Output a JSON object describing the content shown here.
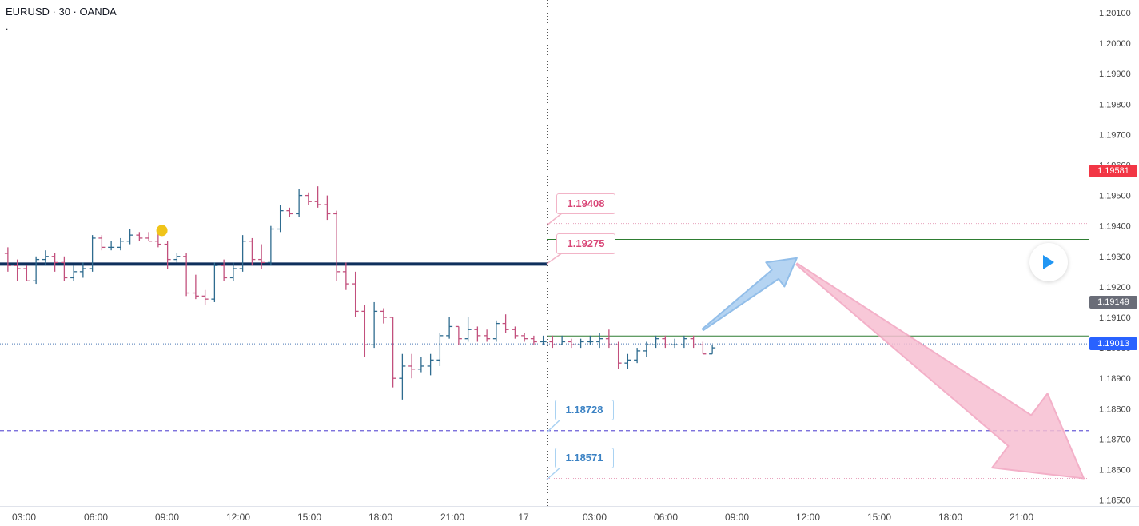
{
  "legend": {
    "symbol": "EURUSD",
    "interval": "30",
    "exchange": "OANDA",
    "separator": " · ",
    "second_line": "."
  },
  "colors": {
    "up": "#2e6b8f",
    "down": "#c2507d",
    "level_line": "#0e2f5c",
    "green_line": "#2e7d32",
    "dotted_blue": "#4a78b5",
    "dashed_purple": "#6b5fd8",
    "dotted_pink": "#e8a3bd",
    "crosshair": "#555555",
    "axis_text": "#444444",
    "grid_border": "#e0e3eb"
  },
  "price_axis": {
    "ticks": [
      "1.20100",
      "1.20000",
      "1.19900",
      "1.19800",
      "1.19700",
      "1.19600",
      "1.19500",
      "1.19400",
      "1.19300",
      "1.19200",
      "1.19100",
      "1.19000",
      "1.18900",
      "1.18800",
      "1.18700",
      "1.18600",
      "1.18500"
    ],
    "tags": [
      {
        "value": "1.19581",
        "price": 1.19581,
        "color": "#f23645"
      },
      {
        "value": "1.19149",
        "price": 1.19149,
        "color": "#6a6d78"
      },
      {
        "value": "1.19013",
        "price": 1.19013,
        "color": "#2962ff"
      }
    ]
  },
  "time_axis": {
    "labels": [
      "03:00",
      "06:00",
      "09:00",
      "12:00",
      "15:00",
      "18:00",
      "21:00",
      "17",
      "03:00",
      "06:00",
      "09:00",
      "12:00",
      "15:00",
      "18:00",
      "21:00"
    ]
  },
  "callouts": [
    {
      "text": "1.19408",
      "style": "red"
    },
    {
      "text": "1.19275",
      "style": "red"
    },
    {
      "text": "1.18728",
      "style": "blue"
    },
    {
      "text": "1.18571",
      "style": "blue"
    }
  ],
  "chart_data": {
    "type": "ohlc",
    "symbol": "EURUSD",
    "interval_minutes": 30,
    "price_range": [
      1.1848,
      1.2104
    ],
    "x_unit": "30-minute bar index (0 = first visible bar)",
    "x_range": [
      -0.5,
      90
    ],
    "bars": [
      {
        "i": 0,
        "o": 1.1931,
        "h": 1.1933,
        "l": 1.1925,
        "c": 1.1927
      },
      {
        "i": 1,
        "o": 1.1927,
        "h": 1.1929,
        "l": 1.1922,
        "c": 1.1926
      },
      {
        "i": 2,
        "o": 1.1926,
        "h": 1.1927,
        "l": 1.1922,
        "c": 1.1922
      },
      {
        "i": 3,
        "o": 1.1922,
        "h": 1.193,
        "l": 1.1921,
        "c": 1.1929
      },
      {
        "i": 4,
        "o": 1.1929,
        "h": 1.1932,
        "l": 1.1927,
        "c": 1.193
      },
      {
        "i": 5,
        "o": 1.193,
        "h": 1.1931,
        "l": 1.1925,
        "c": 1.1928
      },
      {
        "i": 6,
        "o": 1.1928,
        "h": 1.193,
        "l": 1.1922,
        "c": 1.1923
      },
      {
        "i": 7,
        "o": 1.1923,
        "h": 1.1927,
        "l": 1.1922,
        "c": 1.1925
      },
      {
        "i": 8,
        "o": 1.1925,
        "h": 1.1928,
        "l": 1.1923,
        "c": 1.1926
      },
      {
        "i": 9,
        "o": 1.1926,
        "h": 1.1937,
        "l": 1.1925,
        "c": 1.1936
      },
      {
        "i": 10,
        "o": 1.1936,
        "h": 1.1937,
        "l": 1.1932,
        "c": 1.1933
      },
      {
        "i": 11,
        "o": 1.1933,
        "h": 1.1935,
        "l": 1.1932,
        "c": 1.1933
      },
      {
        "i": 12,
        "o": 1.1933,
        "h": 1.1936,
        "l": 1.1932,
        "c": 1.1935
      },
      {
        "i": 13,
        "o": 1.1935,
        "h": 1.1939,
        "l": 1.1934,
        "c": 1.1937
      },
      {
        "i": 14,
        "o": 1.1937,
        "h": 1.1938,
        "l": 1.1935,
        "c": 1.1936
      },
      {
        "i": 15,
        "o": 1.1936,
        "h": 1.1938,
        "l": 1.1935,
        "c": 1.1935
      },
      {
        "i": 16,
        "o": 1.1935,
        "h": 1.1938,
        "l": 1.1933,
        "c": 1.1934
      },
      {
        "i": 17,
        "o": 1.1934,
        "h": 1.1935,
        "l": 1.1926,
        "c": 1.1929
      },
      {
        "i": 18,
        "o": 1.1929,
        "h": 1.1931,
        "l": 1.1928,
        "c": 1.193
      },
      {
        "i": 19,
        "o": 1.193,
        "h": 1.1931,
        "l": 1.1917,
        "c": 1.1918
      },
      {
        "i": 20,
        "o": 1.1918,
        "h": 1.1924,
        "l": 1.1916,
        "c": 1.1917
      },
      {
        "i": 21,
        "o": 1.1917,
        "h": 1.1919,
        "l": 1.1914,
        "c": 1.1916
      },
      {
        "i": 22,
        "o": 1.1916,
        "h": 1.1928,
        "l": 1.1915,
        "c": 1.1927
      },
      {
        "i": 23,
        "o": 1.1927,
        "h": 1.1929,
        "l": 1.1922,
        "c": 1.1923
      },
      {
        "i": 24,
        "o": 1.1923,
        "h": 1.1928,
        "l": 1.1922,
        "c": 1.1926
      },
      {
        "i": 25,
        "o": 1.1926,
        "h": 1.1937,
        "l": 1.1925,
        "c": 1.1935
      },
      {
        "i": 26,
        "o": 1.1935,
        "h": 1.1936,
        "l": 1.1927,
        "c": 1.1929
      },
      {
        "i": 27,
        "o": 1.1929,
        "h": 1.1934,
        "l": 1.1926,
        "c": 1.1928
      },
      {
        "i": 28,
        "o": 1.1928,
        "h": 1.194,
        "l": 1.1927,
        "c": 1.1939
      },
      {
        "i": 29,
        "o": 1.1939,
        "h": 1.1947,
        "l": 1.1938,
        "c": 1.1945
      },
      {
        "i": 30,
        "o": 1.1945,
        "h": 1.1946,
        "l": 1.1943,
        "c": 1.1944
      },
      {
        "i": 31,
        "o": 1.1944,
        "h": 1.1952,
        "l": 1.1943,
        "c": 1.195
      },
      {
        "i": 32,
        "o": 1.195,
        "h": 1.1951,
        "l": 1.1947,
        "c": 1.1948
      },
      {
        "i": 33,
        "o": 1.1948,
        "h": 1.1953,
        "l": 1.1946,
        "c": 1.1947
      },
      {
        "i": 34,
        "o": 1.1947,
        "h": 1.195,
        "l": 1.1942,
        "c": 1.1944
      },
      {
        "i": 35,
        "o": 1.1944,
        "h": 1.1945,
        "l": 1.1922,
        "c": 1.1925
      },
      {
        "i": 36,
        "o": 1.1925,
        "h": 1.1928,
        "l": 1.1919,
        "c": 1.1921
      },
      {
        "i": 37,
        "o": 1.1921,
        "h": 1.1925,
        "l": 1.191,
        "c": 1.1912
      },
      {
        "i": 38,
        "o": 1.1912,
        "h": 1.1914,
        "l": 1.1897,
        "c": 1.1901
      },
      {
        "i": 39,
        "o": 1.1901,
        "h": 1.1915,
        "l": 1.19,
        "c": 1.1912
      },
      {
        "i": 40,
        "o": 1.1912,
        "h": 1.1913,
        "l": 1.1908,
        "c": 1.191
      },
      {
        "i": 41,
        "o": 1.191,
        "h": 1.191,
        "l": 1.1887,
        "c": 1.189
      },
      {
        "i": 42,
        "o": 1.189,
        "h": 1.1898,
        "l": 1.1883,
        "c": 1.1894
      },
      {
        "i": 43,
        "o": 1.1894,
        "h": 1.1898,
        "l": 1.189,
        "c": 1.1893
      },
      {
        "i": 44,
        "o": 1.1893,
        "h": 1.1897,
        "l": 1.1892,
        "c": 1.1894
      },
      {
        "i": 45,
        "o": 1.1894,
        "h": 1.1898,
        "l": 1.1891,
        "c": 1.1896
      },
      {
        "i": 46,
        "o": 1.1896,
        "h": 1.1905,
        "l": 1.1894,
        "c": 1.1904
      },
      {
        "i": 47,
        "o": 1.1904,
        "h": 1.191,
        "l": 1.1903,
        "c": 1.1907
      },
      {
        "i": 48,
        "o": 1.1907,
        "h": 1.1907,
        "l": 1.1901,
        "c": 1.1903
      },
      {
        "i": 49,
        "o": 1.1903,
        "h": 1.191,
        "l": 1.1902,
        "c": 1.1906
      },
      {
        "i": 50,
        "o": 1.1906,
        "h": 1.1907,
        "l": 1.1902,
        "c": 1.1904
      },
      {
        "i": 51,
        "o": 1.1904,
        "h": 1.1906,
        "l": 1.1902,
        "c": 1.1903
      },
      {
        "i": 52,
        "o": 1.1903,
        "h": 1.1909,
        "l": 1.1902,
        "c": 1.1908
      },
      {
        "i": 53,
        "o": 1.1908,
        "h": 1.1911,
        "l": 1.1905,
        "c": 1.1906
      },
      {
        "i": 54,
        "o": 1.1906,
        "h": 1.1907,
        "l": 1.1903,
        "c": 1.1904
      },
      {
        "i": 55,
        "o": 1.1904,
        "h": 1.1905,
        "l": 1.1902,
        "c": 1.1903
      },
      {
        "i": 56,
        "o": 1.1903,
        "h": 1.1904,
        "l": 1.1901,
        "c": 1.1902
      },
      {
        "i": 57,
        "o": 1.1902,
        "h": 1.1904,
        "l": 1.1901,
        "c": 1.1902
      },
      {
        "i": 58,
        "o": 1.1902,
        "h": 1.1904,
        "l": 1.19,
        "c": 1.1901
      },
      {
        "i": 59,
        "o": 1.1901,
        "h": 1.1904,
        "l": 1.1901,
        "c": 1.1902
      },
      {
        "i": 60,
        "o": 1.1902,
        "h": 1.1903,
        "l": 1.19,
        "c": 1.1901
      },
      {
        "i": 61,
        "o": 1.1901,
        "h": 1.1903,
        "l": 1.19,
        "c": 1.1902
      },
      {
        "i": 62,
        "o": 1.1902,
        "h": 1.1904,
        "l": 1.1901,
        "c": 1.1902
      },
      {
        "i": 63,
        "o": 1.1902,
        "h": 1.1905,
        "l": 1.19,
        "c": 1.1903
      },
      {
        "i": 64,
        "o": 1.1903,
        "h": 1.1906,
        "l": 1.19,
        "c": 1.1901
      },
      {
        "i": 65,
        "o": 1.1901,
        "h": 1.1902,
        "l": 1.1893,
        "c": 1.1895
      },
      {
        "i": 66,
        "o": 1.1895,
        "h": 1.1898,
        "l": 1.1893,
        "c": 1.1896
      },
      {
        "i": 67,
        "o": 1.1896,
        "h": 1.19,
        "l": 1.1895,
        "c": 1.1899
      },
      {
        "i": 68,
        "o": 1.1899,
        "h": 1.1902,
        "l": 1.1897,
        "c": 1.1901
      },
      {
        "i": 69,
        "o": 1.1901,
        "h": 1.1904,
        "l": 1.19,
        "c": 1.1903
      },
      {
        "i": 70,
        "o": 1.1903,
        "h": 1.1904,
        "l": 1.19,
        "c": 1.1901
      },
      {
        "i": 71,
        "o": 1.1901,
        "h": 1.1903,
        "l": 1.19,
        "c": 1.1901
      },
      {
        "i": 72,
        "o": 1.1901,
        "h": 1.1904,
        "l": 1.19,
        "c": 1.1903
      },
      {
        "i": 73,
        "o": 1.1903,
        "h": 1.1904,
        "l": 1.19,
        "c": 1.1901
      },
      {
        "i": 74,
        "o": 1.1901,
        "h": 1.1902,
        "l": 1.1898,
        "c": 1.1898
      },
      {
        "i": 75,
        "o": 1.1898,
        "h": 1.1901,
        "l": 1.1898,
        "c": 1.19
      }
    ],
    "horizontal_levels": [
      {
        "price": 1.19275,
        "style": "thick-solid",
        "color": "#0e2f5c",
        "from_bar": -0.5,
        "to_bar": 58.5
      },
      {
        "price": 1.19408,
        "style": "dotted",
        "color": "#e8a3bd",
        "from_bar": 58.5,
        "to_bar": 90
      },
      {
        "price": 1.19356,
        "style": "solid",
        "color": "#2e7d32",
        "from_bar": 58.5,
        "to_bar": 90
      },
      {
        "price": 1.19039,
        "style": "solid",
        "color": "#2e7d32",
        "from_bar": 58.5,
        "to_bar": 90
      },
      {
        "price": 1.19013,
        "style": "dotted",
        "color": "#4a78b5",
        "from_bar": -0.5,
        "to_bar": 90
      },
      {
        "price": 1.18728,
        "style": "dashed",
        "color": "#6b5fd8",
        "from_bar": -0.5,
        "to_bar": 90
      },
      {
        "price": 1.18571,
        "style": "dotted",
        "color": "#e8a3bd",
        "from_bar": 58.5,
        "to_bar": 90
      }
    ],
    "marker": {
      "bar": 16.4,
      "price": 1.19385,
      "color": "#f0c419"
    },
    "crosshair_bar": 58.5,
    "arrows": [
      {
        "color": "blue",
        "from": {
          "bar": 74,
          "price": 1.1906
        },
        "to": {
          "bar": 84,
          "price": 1.19295
        }
      },
      {
        "color": "pink",
        "from": {
          "bar": 84,
          "price": 1.19275
        },
        "to": {
          "bar": 116,
          "price": 1.18571
        }
      }
    ]
  }
}
